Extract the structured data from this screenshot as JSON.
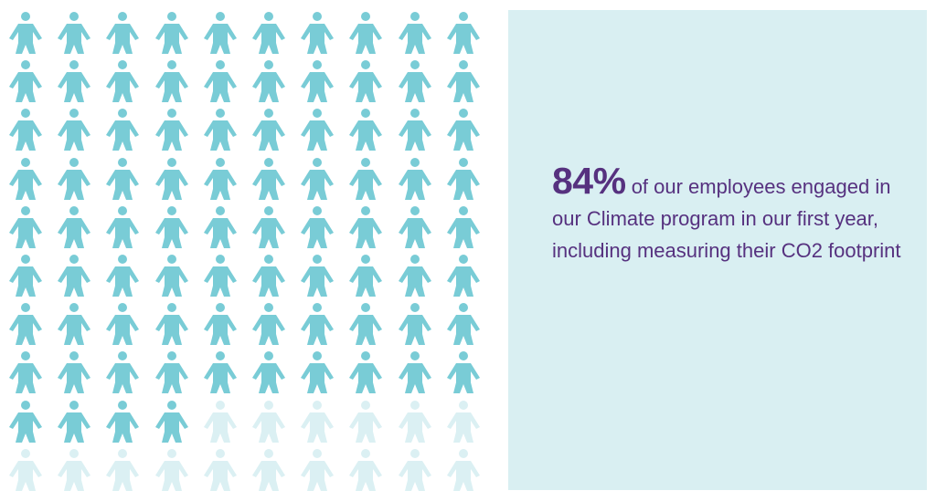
{
  "chart_data": {
    "type": "waffle",
    "total_units": 100,
    "highlighted_units": 84,
    "value_percent": 84,
    "grid": {
      "rows": 10,
      "columns": 10
    },
    "fill_order": "row-major from top-left",
    "colors": {
      "highlighted": "#79ccd6",
      "remaining": "#dbf0f3"
    },
    "unit_icon": "person-icon"
  },
  "stat": {
    "value": "84%",
    "caption": "of our employees engaged in our Climate program in our first year, including measuring their CO2 footprint"
  },
  "colors": {
    "panel_background": "#d9eff2",
    "text": "#56317f"
  }
}
